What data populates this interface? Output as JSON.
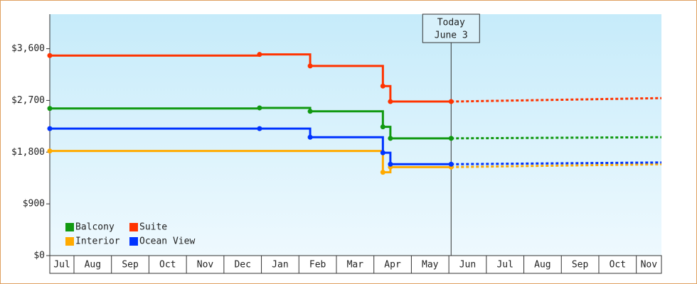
{
  "chart_data": {
    "type": "line",
    "step": true,
    "grid": false,
    "legend": "bottom-left",
    "xlim": [
      0.355,
      16.67
    ],
    "xticks": [
      1,
      2,
      3,
      4,
      5,
      6,
      7,
      8,
      9,
      10,
      11,
      12,
      13,
      14,
      15,
      16
    ],
    "categories": [
      "Jul",
      "Aug",
      "Sep",
      "Oct",
      "Nov",
      "Dec",
      "Jan",
      "Feb",
      "Mar",
      "Apr",
      "May",
      "Jun",
      "Jul",
      "Aug",
      "Sep",
      "Oct",
      "Nov"
    ],
    "ylim": [
      0,
      4200
    ],
    "yticks": [
      {
        "value": 0,
        "label": "$0"
      },
      {
        "value": 900,
        "label": "$900"
      },
      {
        "value": 1800,
        "label": "$1,800"
      },
      {
        "value": 2700,
        "label": "$2,700"
      },
      {
        "value": 3600,
        "label": "$3,600"
      }
    ],
    "annotation": {
      "x": 11.06,
      "lines": [
        "Today",
        "June 3"
      ]
    },
    "series": [
      {
        "name": "Balcony",
        "color": "#119911",
        "x": [
          0.355,
          5.95,
          7.3,
          9.24,
          9.44,
          11.06
        ],
        "values": [
          2560,
          2570,
          2510,
          2240,
          2040,
          2040
        ],
        "forecast": {
          "x": [
            11.06,
            16.67
          ],
          "values": [
            2040,
            2060
          ]
        }
      },
      {
        "name": "Suite",
        "color": "#ff3300",
        "x": [
          0.355,
          5.95,
          7.3,
          9.24,
          9.44,
          11.06
        ],
        "values": [
          3480,
          3500,
          3300,
          2950,
          2680,
          2680
        ],
        "forecast": {
          "x": [
            11.06,
            16.67
          ],
          "values": [
            2680,
            2740
          ]
        }
      },
      {
        "name": "Interior",
        "color": "#ffaa00",
        "x": [
          0.355,
          9.24,
          9.44,
          11.06
        ],
        "values": [
          1820,
          1450,
          1540,
          1540
        ],
        "forecast": {
          "x": [
            11.06,
            16.67
          ],
          "values": [
            1540,
            1590
          ]
        }
      },
      {
        "name": "Ocean View",
        "color": "#0033ff",
        "x": [
          0.355,
          5.95,
          7.3,
          9.24,
          9.44,
          11.06
        ],
        "values": [
          2210,
          2210,
          2060,
          1790,
          1590,
          1590
        ],
        "forecast": {
          "x": [
            11.06,
            16.67
          ],
          "values": [
            1590,
            1620
          ]
        }
      }
    ]
  }
}
